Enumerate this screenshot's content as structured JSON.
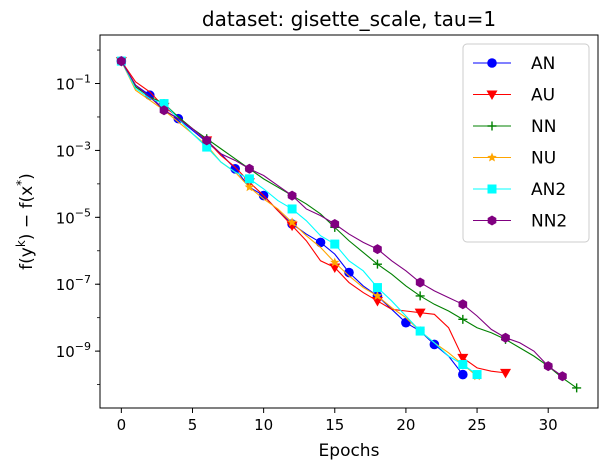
{
  "chart_data": {
    "type": "line",
    "title": "dataset: gisette_scale, tau=1",
    "xlabel": "Epochs",
    "ylabel": "f(y^k) − f(x^*)",
    "ylabel_parts": {
      "f1": "f(y",
      "k": "k",
      "mid": ") − f(x",
      "star": "*",
      "end": ")"
    },
    "yscale": "log",
    "xlim": [
      -1.5,
      33.5
    ],
    "ylim_log10": [
      -10.7,
      0.45
    ],
    "x_ticks": [
      0,
      5,
      10,
      15,
      20,
      25,
      30
    ],
    "x_tick_labels": [
      "0",
      "5",
      "10",
      "15",
      "20",
      "25",
      "30"
    ],
    "y_ticks_log10": [
      -1,
      -3,
      -5,
      -7,
      -9
    ],
    "y_tick_labels": [
      {
        "base": "10",
        "exp": "−1"
      },
      {
        "base": "10",
        "exp": "−3"
      },
      {
        "base": "10",
        "exp": "−5"
      },
      {
        "base": "10",
        "exp": "−7"
      },
      {
        "base": "10",
        "exp": "−9"
      }
    ],
    "legend_location": "upper right",
    "series": [
      {
        "name": "AN",
        "color": "#0000ff",
        "marker": "circle",
        "x": [
          0,
          1,
          2,
          3,
          4,
          5,
          6,
          7,
          8,
          9,
          10,
          11,
          12,
          13,
          14,
          15,
          16,
          17,
          18,
          19,
          20,
          21,
          22,
          23,
          24
        ],
        "log10_y": [
          -0.33,
          -1.05,
          -1.35,
          -1.8,
          -2.05,
          -2.4,
          -2.75,
          -3.1,
          -3.55,
          -4.1,
          -4.35,
          -4.8,
          -5.2,
          -5.5,
          -5.75,
          -6.1,
          -6.65,
          -7.05,
          -7.35,
          -7.75,
          -8.15,
          -8.4,
          -8.8,
          -9.15,
          -9.7
        ],
        "marker_every": 2
      },
      {
        "name": "AU",
        "color": "#ff0000",
        "marker": "triangle-down",
        "x": [
          0,
          1,
          2,
          3,
          4,
          5,
          6,
          7,
          8,
          9,
          10,
          11,
          12,
          13,
          14,
          15,
          16,
          17,
          18,
          19,
          20,
          21,
          22,
          23,
          24,
          25,
          26,
          27
        ],
        "log10_y": [
          -0.33,
          -0.95,
          -1.25,
          -1.7,
          -2.0,
          -2.35,
          -2.7,
          -3.15,
          -3.5,
          -3.95,
          -4.35,
          -4.8,
          -5.25,
          -5.7,
          -6.3,
          -6.5,
          -6.95,
          -7.25,
          -7.5,
          -7.75,
          -7.8,
          -7.85,
          -7.9,
          -8.3,
          -9.2,
          -9.5,
          -9.6,
          -9.65
        ],
        "marker_every": 3
      },
      {
        "name": "NN",
        "color": "#008000",
        "marker": "plus",
        "x": [
          0,
          1,
          2,
          3,
          4,
          5,
          6,
          7,
          8,
          9,
          10,
          11,
          12,
          13,
          14,
          15,
          16,
          17,
          18,
          19,
          20,
          21,
          22,
          23,
          24,
          25,
          26,
          27,
          28,
          29,
          30,
          31,
          32
        ],
        "log10_y": [
          -0.33,
          -1.1,
          -1.4,
          -1.6,
          -2.0,
          -2.35,
          -2.65,
          -2.95,
          -3.25,
          -3.55,
          -3.85,
          -4.1,
          -4.35,
          -4.6,
          -4.9,
          -5.3,
          -5.7,
          -6.05,
          -6.4,
          -6.7,
          -7.05,
          -7.35,
          -7.6,
          -7.8,
          -8.05,
          -8.3,
          -8.45,
          -8.65,
          -8.9,
          -9.15,
          -9.45,
          -9.8,
          -10.1
        ],
        "marker_every": 3
      },
      {
        "name": "NU",
        "color": "#ffa500",
        "marker": "star",
        "x": [
          0,
          1,
          2,
          3,
          4,
          5,
          6,
          7,
          8,
          9,
          10,
          11,
          12,
          13,
          14,
          15,
          16,
          17,
          18,
          19,
          20,
          21,
          22,
          23,
          24,
          25
        ],
        "log10_y": [
          -0.33,
          -1.2,
          -1.5,
          -1.8,
          -2.15,
          -2.5,
          -2.85,
          -3.35,
          -3.65,
          -4.1,
          -4.45,
          -4.75,
          -5.15,
          -5.55,
          -5.9,
          -6.35,
          -6.75,
          -7.1,
          -7.35,
          -7.7,
          -8.0,
          -8.4,
          -8.75,
          -9.05,
          -9.4,
          -9.75
        ],
        "marker_every": 3
      },
      {
        "name": "AN2",
        "color": "#00ffff",
        "marker": "square",
        "x": [
          0,
          1,
          2,
          3,
          4,
          5,
          6,
          7,
          8,
          9,
          10,
          11,
          12,
          13,
          14,
          15,
          16,
          17,
          18,
          19,
          20,
          21,
          22,
          23,
          24,
          25
        ],
        "log10_y": [
          -0.33,
          -1.15,
          -1.45,
          -1.6,
          -2.05,
          -2.5,
          -2.9,
          -3.35,
          -3.65,
          -3.85,
          -4.15,
          -4.5,
          -4.75,
          -5.1,
          -5.55,
          -5.8,
          -6.3,
          -6.6,
          -7.1,
          -7.5,
          -7.95,
          -8.4,
          -8.75,
          -9.15,
          -9.4,
          -9.7
        ],
        "marker_every": 3
      },
      {
        "name": "NN2",
        "color": "#800080",
        "marker": "hexagon",
        "x": [
          0,
          1,
          2,
          3,
          4,
          5,
          6,
          7,
          8,
          9,
          10,
          11,
          12,
          13,
          14,
          15,
          16,
          17,
          18,
          19,
          20,
          21,
          22,
          23,
          24,
          25,
          26,
          27,
          28,
          29,
          30,
          31
        ],
        "log10_y": [
          -0.33,
          -1.05,
          -1.4,
          -1.8,
          -2.05,
          -2.35,
          -2.7,
          -3.1,
          -3.3,
          -3.55,
          -3.75,
          -4.05,
          -4.35,
          -4.75,
          -4.95,
          -5.2,
          -5.5,
          -5.75,
          -5.95,
          -6.3,
          -6.6,
          -6.95,
          -7.2,
          -7.4,
          -7.6,
          -7.95,
          -8.35,
          -8.6,
          -8.75,
          -9.0,
          -9.45,
          -9.75
        ],
        "marker_every": 3
      }
    ]
  }
}
